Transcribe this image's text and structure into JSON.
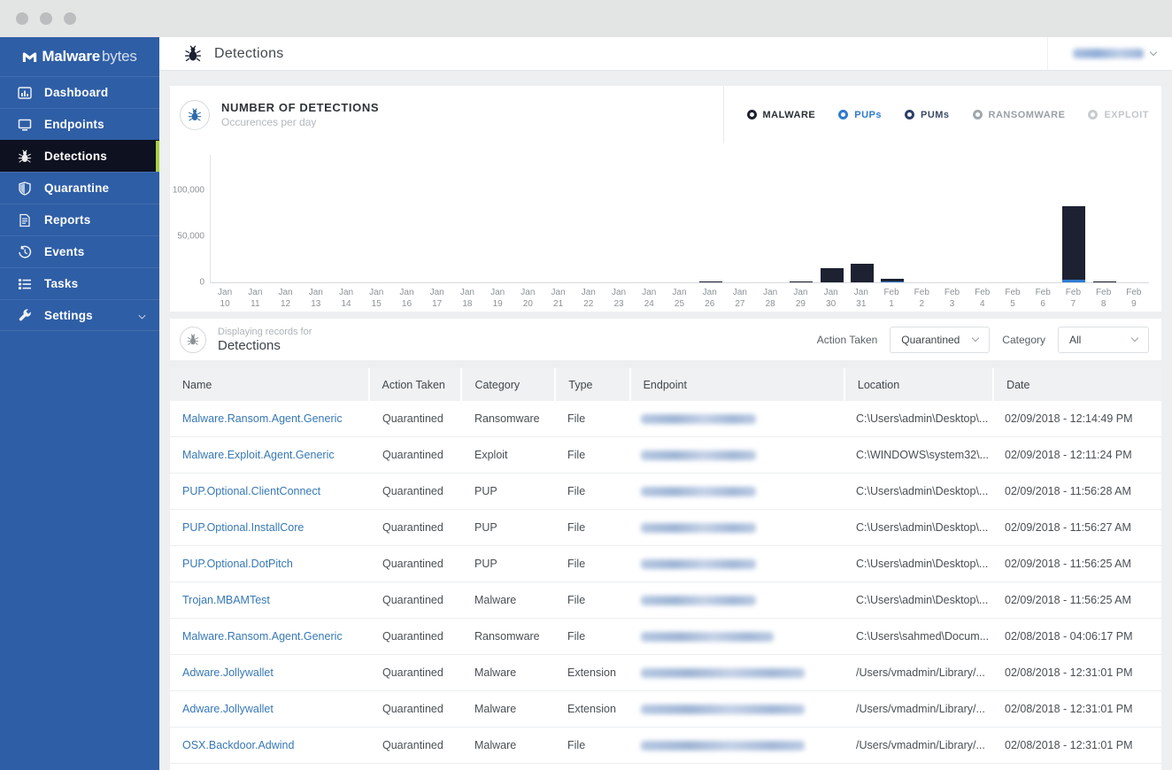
{
  "window": {
    "controls": [
      "close",
      "minimize",
      "maximize"
    ]
  },
  "sidebar": {
    "logo_bold": "Malware",
    "logo_light": "bytes",
    "colors": {
      "background": "#2e5ea6",
      "active_background": "#0e1120",
      "active_accent": "#a8cf45"
    },
    "items": [
      {
        "label": "Dashboard",
        "icon": "dashboard-icon",
        "active": false
      },
      {
        "label": "Endpoints",
        "icon": "endpoints-icon",
        "active": false
      },
      {
        "label": "Detections",
        "icon": "bug-icon",
        "active": true
      },
      {
        "label": "Quarantine",
        "icon": "shield-icon",
        "active": false
      },
      {
        "label": "Reports",
        "icon": "report-icon",
        "active": false
      },
      {
        "label": "Events",
        "icon": "history-icon",
        "active": false
      },
      {
        "label": "Tasks",
        "icon": "tasks-icon",
        "active": false
      },
      {
        "label": "Settings",
        "icon": "wrench-icon",
        "active": false,
        "has_chevron": true
      }
    ]
  },
  "header": {
    "title": "Detections",
    "user_name_redacted": true
  },
  "chart_card": {
    "title": "NUMBER OF DETECTIONS",
    "subtitle": "Occurences per day",
    "legend": [
      {
        "label": "MALWARE",
        "color": "#1d2132",
        "text_color": "#2a2e33"
      },
      {
        "label": "PUPs",
        "color": "#2e7bd1",
        "text_color": "#2e7bd1"
      },
      {
        "label": "PUMs",
        "color": "#2c3f68",
        "text_color": "#3c4a66"
      },
      {
        "label": "RANSOMWARE",
        "color": "#a2a7ad",
        "text_color": "#999fa5"
      },
      {
        "label": "EXPLOIT",
        "color": "#c8ccd0",
        "text_color": "#c2c6ca"
      }
    ]
  },
  "chart_data": {
    "type": "bar",
    "stacked": true,
    "title": "NUMBER OF DETECTIONS",
    "subtitle": "Occurences per day",
    "categories": [
      "Jan 10",
      "Jan 11",
      "Jan 12",
      "Jan 13",
      "Jan 14",
      "Jan 15",
      "Jan 16",
      "Jan 17",
      "Jan 18",
      "Jan 19",
      "Jan 20",
      "Jan 21",
      "Jan 22",
      "Jan 23",
      "Jan 24",
      "Jan 25",
      "Jan 26",
      "Jan 27",
      "Jan 28",
      "Jan 29",
      "Jan 30",
      "Jan 31",
      "Feb 1",
      "Feb 2",
      "Feb 3",
      "Feb 4",
      "Feb 5",
      "Feb 6",
      "Feb 7",
      "Feb 8",
      "Feb 9"
    ],
    "series": [
      {
        "name": "MALWARE",
        "color": "#1d2132",
        "values": [
          0,
          0,
          0,
          0,
          0,
          0,
          0,
          0,
          0,
          0,
          0,
          0,
          0,
          0,
          0,
          0,
          600,
          0,
          0,
          600,
          15000,
          20000,
          2000,
          0,
          0,
          0,
          0,
          0,
          80000,
          1200,
          0
        ]
      },
      {
        "name": "PUPs",
        "color": "#2e7bd1",
        "values": [
          0,
          0,
          0,
          0,
          0,
          0,
          0,
          0,
          0,
          0,
          0,
          0,
          0,
          0,
          0,
          0,
          0,
          0,
          0,
          0,
          0,
          0,
          800,
          0,
          0,
          0,
          0,
          0,
          2500,
          0,
          0
        ]
      }
    ],
    "ylim": [
      0,
      100000
    ],
    "yticks": [
      {
        "value": 0,
        "label": "0"
      },
      {
        "value": 50000,
        "label": "50,000"
      },
      {
        "value": 100000,
        "label": "100,000"
      }
    ],
    "grid": false,
    "legend_position": "top-right"
  },
  "filter_bar": {
    "caption_small": "Displaying records for",
    "caption_large": "Detections",
    "action_taken_label": "Action Taken",
    "action_taken_value": "Quarantined",
    "category_label": "Category",
    "category_value": "All"
  },
  "table": {
    "columns": [
      "Name",
      "Action Taken",
      "Category",
      "Type",
      "Endpoint",
      "Location",
      "Date"
    ],
    "rows": [
      {
        "name": "Malware.Ransom.Agent.Generic",
        "action": "Quarantined",
        "category": "Ransomware",
        "type": "File",
        "endpoint_redacted": true,
        "endpoint_blur_width": 130,
        "location": "C:\\Users\\admin\\Desktop\\...",
        "date": "02/09/2018 - 12:14:49 PM"
      },
      {
        "name": "Malware.Exploit.Agent.Generic",
        "action": "Quarantined",
        "category": "Exploit",
        "type": "File",
        "endpoint_redacted": true,
        "endpoint_blur_width": 130,
        "location": "C:\\WINDOWS\\system32\\...",
        "date": "02/09/2018 - 12:11:24 PM"
      },
      {
        "name": "PUP.Optional.ClientConnect",
        "action": "Quarantined",
        "category": "PUP",
        "type": "File",
        "endpoint_redacted": true,
        "endpoint_blur_width": 130,
        "location": "C:\\Users\\admin\\Desktop\\...",
        "date": "02/09/2018 - 11:56:28 AM"
      },
      {
        "name": "PUP.Optional.InstallCore",
        "action": "Quarantined",
        "category": "PUP",
        "type": "File",
        "endpoint_redacted": true,
        "endpoint_blur_width": 130,
        "location": "C:\\Users\\admin\\Desktop\\...",
        "date": "02/09/2018 - 11:56:27 AM"
      },
      {
        "name": "PUP.Optional.DotPitch",
        "action": "Quarantined",
        "category": "PUP",
        "type": "File",
        "endpoint_redacted": true,
        "endpoint_blur_width": 130,
        "location": "C:\\Users\\admin\\Desktop\\...",
        "date": "02/09/2018 - 11:56:25 AM"
      },
      {
        "name": "Trojan.MBAMTest",
        "action": "Quarantined",
        "category": "Malware",
        "type": "File",
        "endpoint_redacted": true,
        "endpoint_blur_width": 130,
        "location": "C:\\Users\\admin\\Desktop\\...",
        "date": "02/09/2018 - 11:56:25 AM"
      },
      {
        "name": "Malware.Ransom.Agent.Generic",
        "action": "Quarantined",
        "category": "Ransomware",
        "type": "File",
        "endpoint_redacted": true,
        "endpoint_blur_width": 150,
        "location": "C:\\Users\\sahmed\\Docum...",
        "date": "02/08/2018 - 04:06:17 PM"
      },
      {
        "name": "Adware.Jollywallet",
        "action": "Quarantined",
        "category": "Malware",
        "type": "Extension",
        "endpoint_redacted": true,
        "endpoint_blur_width": 185,
        "location": "/Users/vmadmin/Library/...",
        "date": "02/08/2018 - 12:31:01 PM"
      },
      {
        "name": "Adware.Jollywallet",
        "action": "Quarantined",
        "category": "Malware",
        "type": "Extension",
        "endpoint_redacted": true,
        "endpoint_blur_width": 185,
        "location": "/Users/vmadmin/Library/...",
        "date": "02/08/2018 - 12:31:01 PM"
      },
      {
        "name": "OSX.Backdoor.Adwind",
        "action": "Quarantined",
        "category": "Malware",
        "type": "File",
        "endpoint_redacted": true,
        "endpoint_blur_width": 185,
        "location": "/Users/vmadmin/Library/...",
        "date": "02/08/2018 - 12:31:01 PM"
      }
    ]
  }
}
